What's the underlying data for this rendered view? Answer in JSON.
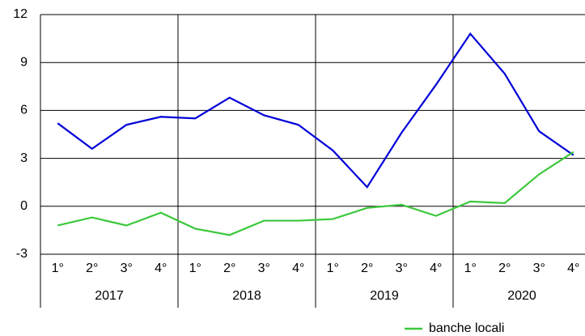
{
  "chart_data": {
    "type": "line",
    "categories": [
      "1°",
      "2°",
      "3°",
      "4°",
      "1°",
      "2°",
      "3°",
      "4°",
      "1°",
      "2°",
      "3°",
      "4°",
      "1°",
      "2°",
      "3°",
      "4°"
    ],
    "groups": [
      "2017",
      "2018",
      "2019",
      "2020"
    ],
    "series": [
      {
        "color": "#0000d8",
        "values": [
          5.2,
          3.6,
          5.1,
          5.6,
          5.5,
          6.8,
          5.7,
          5.1,
          3.5,
          1.2,
          4.6,
          7.6,
          10.8,
          8.3,
          4.7,
          3.2
        ]
      },
      {
        "name": "banche locali",
        "color": "#3cc83c",
        "values": [
          -1.2,
          -0.7,
          -1.2,
          -0.4,
          -1.4,
          -1.8,
          -0.9,
          -0.9,
          -0.8,
          -0.1,
          0.1,
          -0.6,
          0.3,
          0.2,
          2.0,
          3.4
        ]
      }
    ],
    "ylim": [
      -3,
      12
    ],
    "yticks": [
      -3,
      0,
      3,
      6,
      9,
      12
    ],
    "grid": true,
    "legend": "bottom"
  }
}
